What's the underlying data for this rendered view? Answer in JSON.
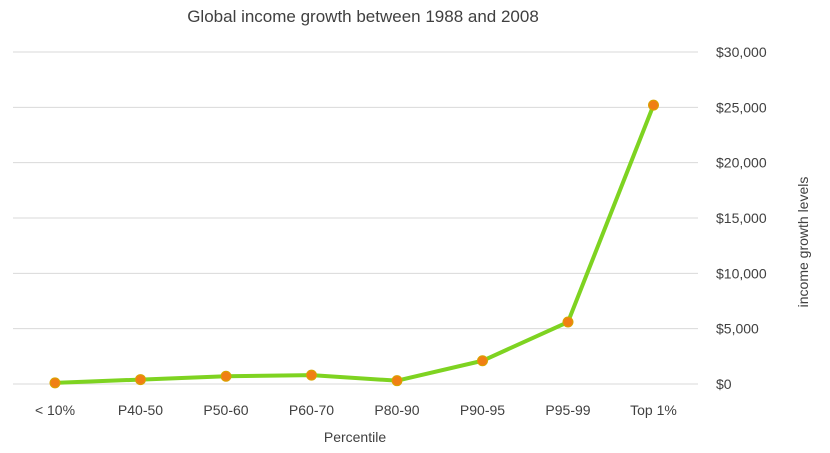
{
  "chart_data": {
    "type": "line",
    "title": "Global income growth between 1988 and 2008",
    "xlabel": "Percentile",
    "ylabel": "income growth levels",
    "categories": [
      "< 10%",
      "P40-50",
      "P50-60",
      "P60-70",
      "P80-90",
      "P90-95",
      "P95-99",
      "Top 1%"
    ],
    "series": [
      {
        "values": [
          100,
          400,
          700,
          800,
          300,
          2100,
          5600,
          25200
        ]
      }
    ],
    "ylim": [
      0,
      30000
    ],
    "yticks": [
      0,
      5000,
      10000,
      15000,
      20000,
      25000,
      30000
    ],
    "ytick_labels": [
      "$0",
      "$5,000",
      "$10,000",
      "$15,000",
      "$20,000",
      "$25,000",
      "$30,000"
    ],
    "y_axis_side": "right",
    "grid": true,
    "legend": "none",
    "colors": {
      "line": "#7ed321",
      "marker": "#f07f14",
      "text": "#404040",
      "grid": "#d9d9d9"
    }
  }
}
